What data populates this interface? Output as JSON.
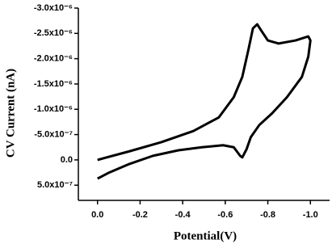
{
  "chart_data": {
    "type": "line",
    "xlabel": "Potential(V)",
    "ylabel": "CV Current (nA)",
    "xlim": [
      0.09,
      -1.09
    ],
    "ylim": [
      8e-07,
      -3e-06
    ],
    "xticks": [
      {
        "value": 0,
        "label": "0.0"
      },
      {
        "value": -0.2,
        "label": "-0.2"
      },
      {
        "value": -0.4,
        "label": "-0.4"
      },
      {
        "value": -0.6,
        "label": "-0.6"
      },
      {
        "value": -0.8,
        "label": "-0.8"
      },
      {
        "value": -1.0,
        "label": "-1.0"
      }
    ],
    "yticks": [
      {
        "value": -3e-06,
        "label": "-3.0x10⁻⁶"
      },
      {
        "value": -2.5e-06,
        "label": "-2.5x10⁻⁶"
      },
      {
        "value": -2e-06,
        "label": "-2.0x10⁻⁶"
      },
      {
        "value": -1.5e-06,
        "label": "-1.5x10⁻⁶"
      },
      {
        "value": -1e-06,
        "label": "-1.0x10⁻⁶"
      },
      {
        "value": -5e-07,
        "label": "-5.0x10⁻⁷"
      },
      {
        "value": 0,
        "label": "0.0"
      },
      {
        "value": 5e-07,
        "label": "5.0x10⁻⁷"
      }
    ],
    "series": [
      {
        "color": "#000000",
        "x": [
          0.0,
          -0.15,
          -0.3,
          -0.45,
          -0.57,
          -0.64,
          -0.68,
          -0.71,
          -0.73,
          -0.75,
          -0.77,
          -0.8,
          -0.85,
          -0.93,
          -0.99,
          -1.0,
          -0.99,
          -0.96,
          -0.89,
          -0.82,
          -0.76,
          -0.72,
          -0.7,
          -0.68,
          -0.67,
          -0.64,
          -0.59,
          -0.49,
          -0.38,
          -0.26,
          -0.15,
          -0.05,
          0.0
        ],
        "values": [
          0.0,
          -1.7e-07,
          -3.5e-07,
          -5.7e-07,
          -8.4e-07,
          -1.24e-06,
          -1.64e-06,
          -2.2e-06,
          -2.6e-06,
          -2.68e-06,
          -2.55e-06,
          -2.36e-06,
          -2.3e-06,
          -2.36e-06,
          -2.44e-06,
          -2.36e-06,
          -2.04e-06,
          -1.64e-06,
          -1.24e-06,
          -9.2e-07,
          -6.9e-07,
          -4.5e-07,
          -2.1e-07,
          -5e-08,
          -8e-08,
          -2.5e-07,
          -2.9e-07,
          -2.5e-07,
          -1.9e-07,
          -8e-08,
          8e-08,
          2.6e-07,
          3.7e-07
        ]
      }
    ]
  }
}
